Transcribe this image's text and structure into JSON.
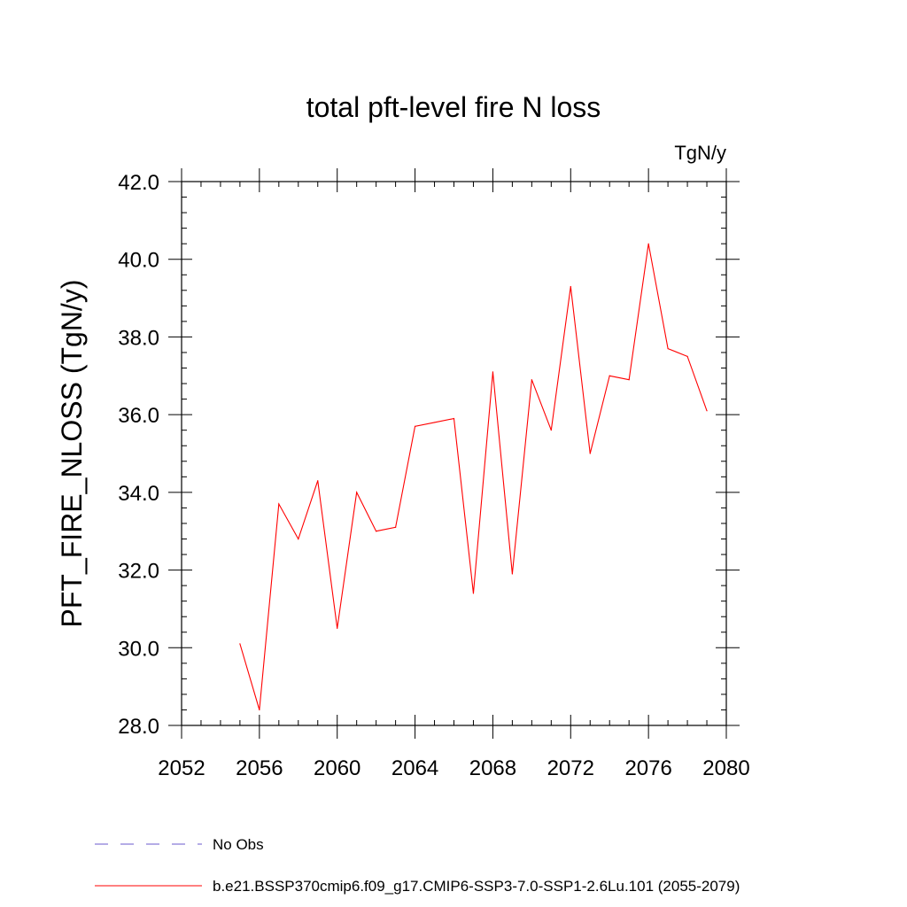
{
  "chart_data": {
    "type": "line",
    "title": "total pft-level fire N loss",
    "units": "TgN/y",
    "ylabel": "PFT_FIRE_NLOSS  (TgN/y)",
    "xlabel": "",
    "xlim": [
      2052,
      2080
    ],
    "ylim": [
      28.0,
      42.0
    ],
    "x_ticks": [
      2052,
      2056,
      2060,
      2064,
      2068,
      2072,
      2076,
      2080
    ],
    "x_tick_labels": [
      "2052",
      "2056",
      "2060",
      "2064",
      "2068",
      "2072",
      "2076",
      "2080"
    ],
    "y_ticks": [
      28.0,
      30.0,
      32.0,
      34.0,
      36.0,
      38.0,
      40.0,
      42.0
    ],
    "y_tick_labels": [
      "28.0",
      "30.0",
      "32.0",
      "34.0",
      "36.0",
      "38.0",
      "40.0",
      "42.0"
    ],
    "grid": false,
    "series": [
      {
        "name": "b.e21.BSSP370cmip6.f09_g17.CMIP6-SSP3-7.0-SSP1-2.6Lu.101 (2055-2079)",
        "color": "#ff0000",
        "x": [
          2055,
          2056,
          2057,
          2058,
          2059,
          2060,
          2061,
          2062,
          2063,
          2064,
          2065,
          2066,
          2067,
          2068,
          2069,
          2070,
          2071,
          2072,
          2073,
          2074,
          2075,
          2076,
          2077,
          2078,
          2079
        ],
        "values": [
          30.1,
          28.4,
          33.7,
          32.8,
          34.3,
          30.5,
          34.0,
          33.0,
          33.1,
          35.7,
          35.8,
          35.9,
          31.4,
          37.1,
          31.9,
          36.9,
          35.6,
          39.3,
          35.0,
          37.0,
          36.9,
          40.4,
          37.7,
          37.5,
          36.1
        ]
      }
    ],
    "legend": {
      "placement": "bottom-left",
      "entries": [
        {
          "label": "No Obs",
          "color": "#6a5acd",
          "dash": "dashed"
        },
        {
          "label": "b.e21.BSSP370cmip6.f09_g17.CMIP6-SSP3-7.0-SSP1-2.6Lu.101 (2055-2079)",
          "color": "#ff0000",
          "dash": "solid"
        }
      ]
    }
  }
}
